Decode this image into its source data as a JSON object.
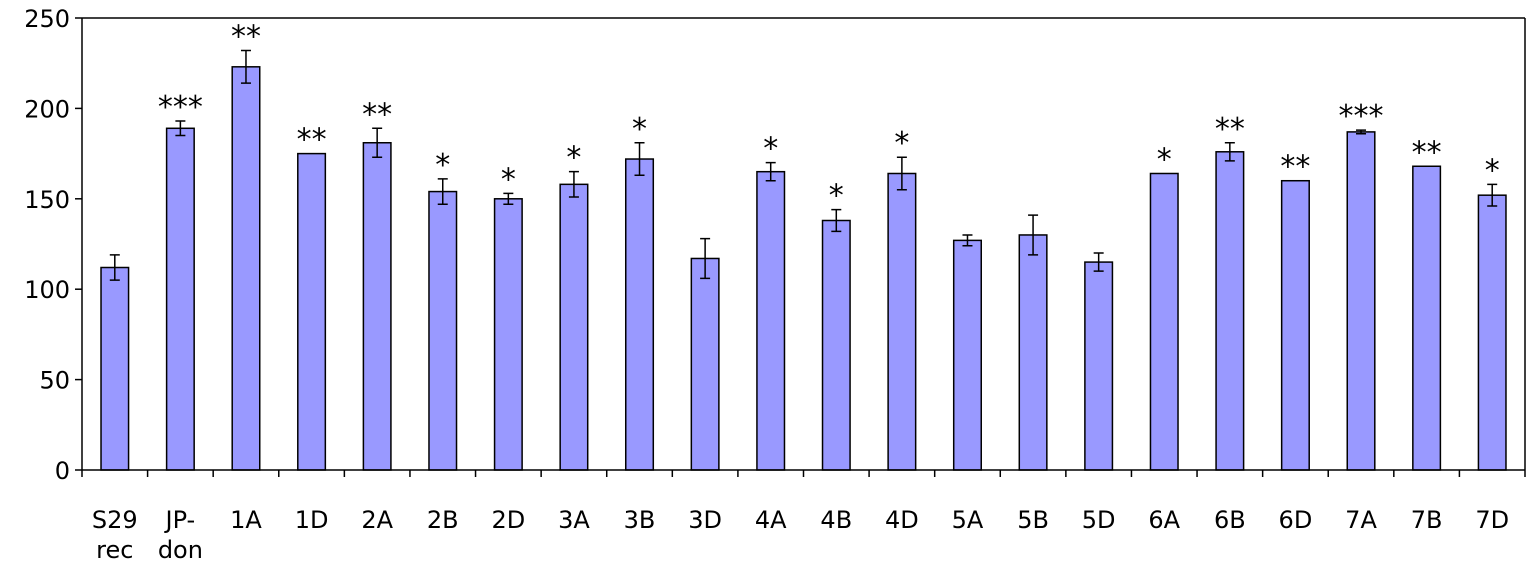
{
  "chart_data": {
    "type": "bar",
    "title": "",
    "xlabel": "",
    "ylabel": "",
    "ylim": [
      0,
      250
    ],
    "yticks": [
      0,
      50,
      100,
      150,
      200,
      250
    ],
    "grid": false,
    "legend": "none",
    "bar_color": "#9999ff",
    "categories": [
      [
        "S29",
        "rec"
      ],
      [
        "JP-",
        "don"
      ],
      [
        "1A"
      ],
      [
        "1D"
      ],
      [
        "2A"
      ],
      [
        "2B"
      ],
      [
        "2D"
      ],
      [
        "3A"
      ],
      [
        "3B"
      ],
      [
        "3D"
      ],
      [
        "4A"
      ],
      [
        "4B"
      ],
      [
        "4D"
      ],
      [
        "5A"
      ],
      [
        "5B"
      ],
      [
        "5D"
      ],
      [
        "6A"
      ],
      [
        "6B"
      ],
      [
        "6D"
      ],
      [
        "7A"
      ],
      [
        "7B"
      ],
      [
        "7D"
      ]
    ],
    "values": [
      112,
      189,
      223,
      175,
      181,
      154,
      150,
      158,
      172,
      117,
      165,
      138,
      164,
      127,
      130,
      115,
      164,
      176,
      160,
      187,
      168,
      152
    ],
    "errors": [
      7,
      4,
      9,
      0,
      8,
      7,
      3,
      7,
      9,
      11,
      5,
      6,
      9,
      3,
      11,
      5,
      0,
      5,
      0,
      1,
      0,
      6
    ],
    "significance": [
      "",
      "***",
      "**",
      "**",
      "**",
      "*",
      "*",
      "*",
      "*",
      "",
      "*",
      "*",
      "*",
      "",
      "",
      "",
      "*",
      "**",
      "**",
      "***",
      "**",
      "*"
    ]
  }
}
